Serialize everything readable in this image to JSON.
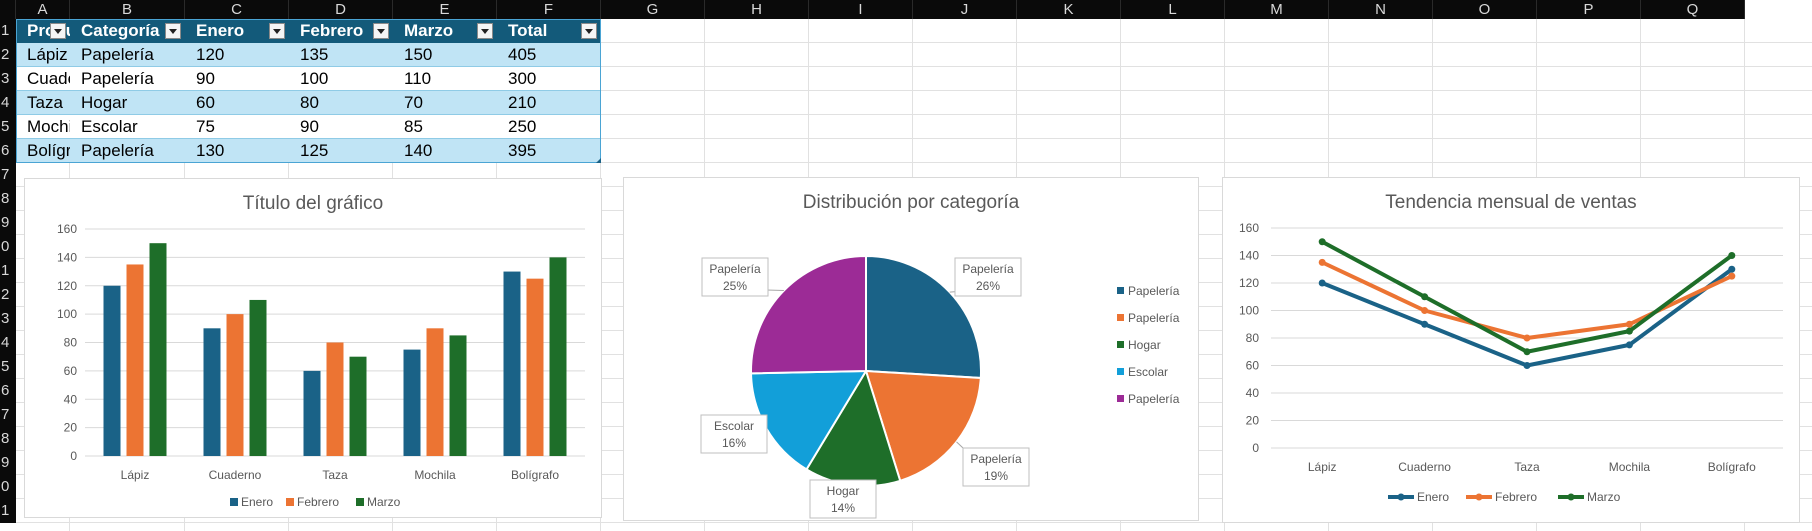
{
  "sheet": {
    "columns": [
      "A",
      "B",
      "C",
      "D",
      "E",
      "F",
      "G",
      "H",
      "I",
      "J",
      "K",
      "L",
      "M",
      "N",
      "O",
      "P",
      "Q"
    ],
    "rows": [
      "1",
      "2",
      "3",
      "4",
      "5",
      "6",
      "7",
      "8",
      "9",
      "0",
      "1",
      "2",
      "3",
      "4",
      "5",
      "6",
      "7",
      "8",
      "9",
      "0",
      "1"
    ],
    "table": {
      "headers": [
        "Producto",
        "Categoría",
        "Enero",
        "Febrero",
        "Marzo",
        "Total"
      ],
      "rows": [
        [
          "Lápiz",
          "Papelería",
          "120",
          "135",
          "150",
          "405"
        ],
        [
          "Cuaderno",
          "Papelería",
          "90",
          "100",
          "110",
          "300"
        ],
        [
          "Taza",
          "Hogar",
          "60",
          "80",
          "70",
          "210"
        ],
        [
          "Mochila",
          "Escolar",
          "75",
          "90",
          "85",
          "250"
        ],
        [
          "Bolígrafo",
          "Papelería",
          "130",
          "125",
          "140",
          "395"
        ]
      ],
      "header_color": "#135a7a",
      "band_color": "#c0e4f5"
    }
  },
  "series_colors": [
    "#1a6287",
    "#ec7433",
    "#1e6e29"
  ],
  "chart_data": [
    {
      "type": "bar",
      "title": "Título del gráfico",
      "categories": [
        "Lápiz",
        "Cuaderno",
        "Taza",
        "Mochila",
        "Bolígrafo"
      ],
      "series": [
        {
          "name": "Enero",
          "values": [
            120,
            90,
            60,
            75,
            130
          ]
        },
        {
          "name": "Febrero",
          "values": [
            135,
            100,
            80,
            90,
            125
          ]
        },
        {
          "name": "Marzo",
          "values": [
            150,
            110,
            70,
            85,
            140
          ]
        }
      ],
      "ylim": [
        0,
        160
      ],
      "yticks": [
        "0",
        "20",
        "40",
        "60",
        "80",
        "100",
        "120",
        "140",
        "160"
      ],
      "grid": true,
      "legend": "bottom"
    },
    {
      "type": "pie",
      "title": "Distribución por categoría",
      "slices": [
        {
          "label": "Papelería",
          "value": 405,
          "pct": "26%",
          "color": "#1a6287"
        },
        {
          "label": "Papelería",
          "value": 300,
          "pct": "19%",
          "color": "#ec7433"
        },
        {
          "label": "Hogar",
          "value": 210,
          "pct": "14%",
          "color": "#1e6e29"
        },
        {
          "label": "Escolar",
          "value": 250,
          "pct": "16%",
          "color": "#129fd9"
        },
        {
          "label": "Papelería",
          "value": 395,
          "pct": "25%",
          "color": "#9c2b96"
        }
      ],
      "legend": "right"
    },
    {
      "type": "line",
      "title": "Tendencia mensual de ventas",
      "categories": [
        "Lápiz",
        "Cuaderno",
        "Taza",
        "Mochila",
        "Bolígrafo"
      ],
      "series": [
        {
          "name": "Enero",
          "values": [
            120,
            90,
            60,
            75,
            130
          ]
        },
        {
          "name": "Febrero",
          "values": [
            135,
            100,
            80,
            90,
            125
          ]
        },
        {
          "name": "Marzo",
          "values": [
            150,
            110,
            70,
            85,
            140
          ]
        }
      ],
      "ylim": [
        0,
        160
      ],
      "yticks": [
        "0",
        "20",
        "40",
        "60",
        "80",
        "100",
        "120",
        "140",
        "160"
      ],
      "grid": true,
      "legend": "bottom"
    }
  ]
}
